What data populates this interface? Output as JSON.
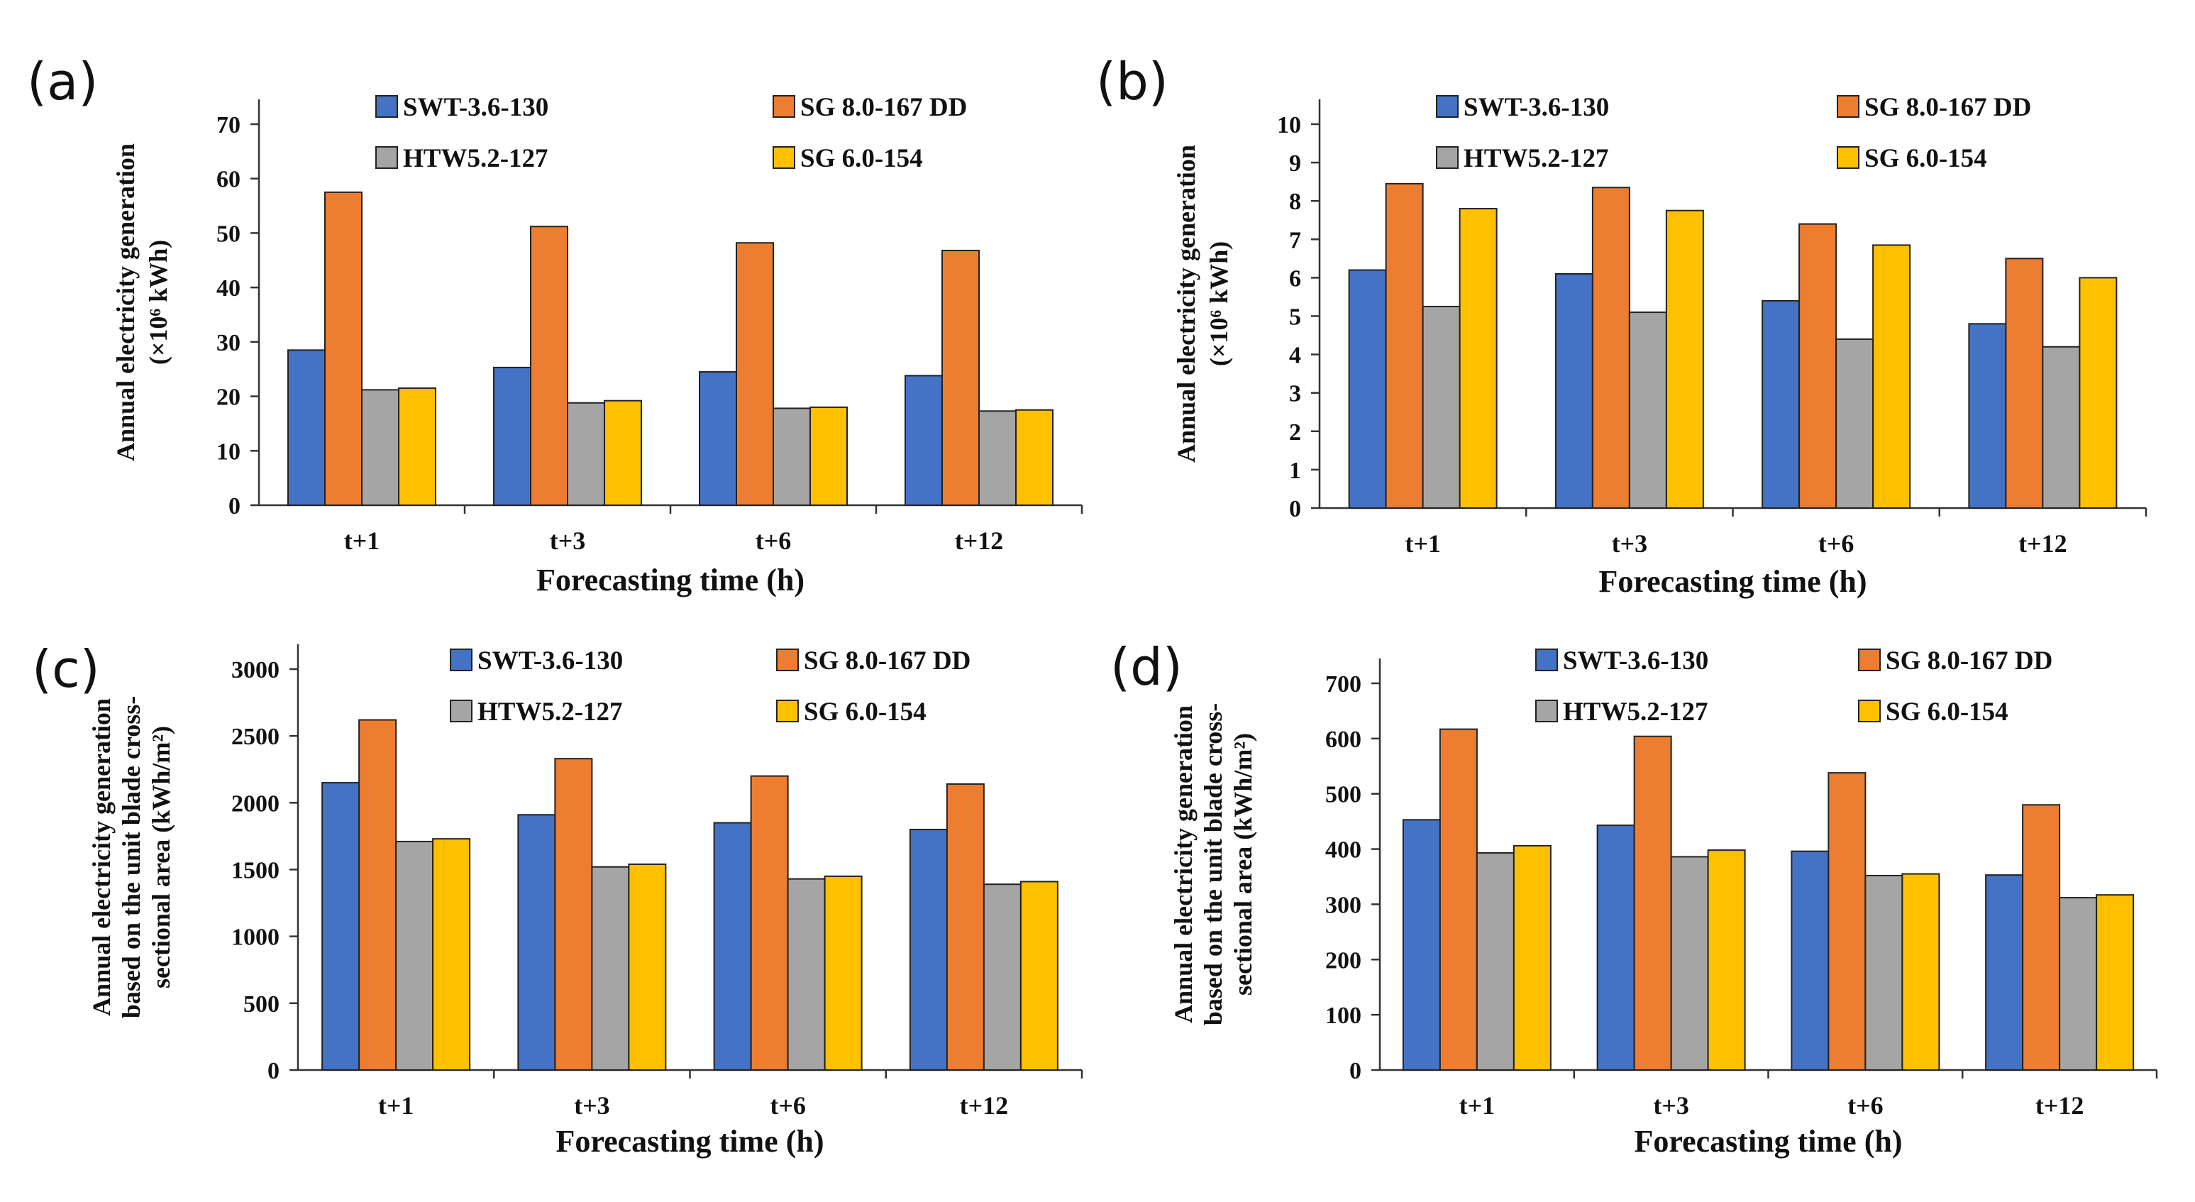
{
  "colors": {
    "SWT-3.6-130": "#4472C4",
    "SG 8.0-167 DD": "#ED7D31",
    "HTW5.2-127": "#A5A5A5",
    "SG 6.0-154": "#FFC000"
  },
  "chart_data": [
    {
      "panel": "(a)",
      "type": "bar",
      "categories": [
        "t+1",
        "t+3",
        "t+6",
        "t+12"
      ],
      "series": [
        {
          "name": "SWT-3.6-130",
          "values": [
            28.5,
            25.3,
            24.5,
            23.8
          ]
        },
        {
          "name": "SG 8.0-167 DD",
          "values": [
            57.5,
            51.2,
            48.2,
            46.8
          ]
        },
        {
          "name": "HTW5.2-127",
          "values": [
            21.2,
            18.8,
            17.8,
            17.3
          ]
        },
        {
          "name": "SG 6.0-154",
          "values": [
            21.5,
            19.2,
            18.0,
            17.5
          ]
        }
      ],
      "ylim": [
        0,
        70
      ],
      "yticks": [
        0,
        10,
        20,
        30,
        40,
        50,
        60,
        70
      ],
      "xlabel": "Forecasting time (h)",
      "ylabel_lines": [
        "Annual electricity generation",
        "(×10⁶ kWh)"
      ],
      "legend": "top, two columns"
    },
    {
      "panel": "(b)",
      "type": "bar",
      "categories": [
        "t+1",
        "t+3",
        "t+6",
        "t+12"
      ],
      "series": [
        {
          "name": "SWT-3.6-130",
          "values": [
            6.2,
            6.1,
            5.4,
            4.8
          ]
        },
        {
          "name": "SG 8.0-167 DD",
          "values": [
            8.45,
            8.35,
            7.4,
            6.5
          ]
        },
        {
          "name": "HTW5.2-127",
          "values": [
            5.25,
            5.1,
            4.4,
            4.2
          ]
        },
        {
          "name": "SG 6.0-154",
          "values": [
            7.8,
            7.75,
            6.85,
            6.0
          ]
        }
      ],
      "ylim": [
        0,
        10
      ],
      "yticks": [
        0,
        1,
        2,
        3,
        4,
        5,
        6,
        7,
        8,
        9,
        10
      ],
      "xlabel": "Forecasting time (h)",
      "ylabel_lines": [
        "Annual electricity generation",
        "(×10⁶ kWh)"
      ],
      "legend": "top, two columns"
    },
    {
      "panel": "(c)",
      "type": "bar",
      "categories": [
        "t+1",
        "t+3",
        "t+6",
        "t+12"
      ],
      "series": [
        {
          "name": "SWT-3.6-130",
          "values": [
            2150,
            1910,
            1850,
            1800
          ]
        },
        {
          "name": "SG 8.0-167 DD",
          "values": [
            2620,
            2330,
            2200,
            2140
          ]
        },
        {
          "name": "HTW5.2-127",
          "values": [
            1710,
            1520,
            1430,
            1390
          ]
        },
        {
          "name": "SG 6.0-154",
          "values": [
            1730,
            1540,
            1450,
            1410
          ]
        }
      ],
      "ylim": [
        0,
        3000
      ],
      "yticks": [
        0,
        500,
        1000,
        1500,
        2000,
        2500,
        3000
      ],
      "xlabel": "Forecasting time (h)",
      "ylabel_lines": [
        "Annual electricity generation",
        "based on the unit blade cross-",
        "sectional area (kWh/m²)"
      ],
      "legend": "top, two columns"
    },
    {
      "panel": "(d)",
      "type": "bar",
      "categories": [
        "t+1",
        "t+3",
        "t+6",
        "t+12"
      ],
      "series": [
        {
          "name": "SWT-3.6-130",
          "values": [
            453,
            443,
            396,
            353
          ]
        },
        {
          "name": "SG 8.0-167 DD",
          "values": [
            617,
            604,
            538,
            480
          ]
        },
        {
          "name": "HTW5.2-127",
          "values": [
            393,
            386,
            352,
            312
          ]
        },
        {
          "name": "SG 6.0-154",
          "values": [
            406,
            398,
            355,
            317
          ]
        }
      ],
      "ylim": [
        0,
        700
      ],
      "yticks": [
        0,
        100,
        200,
        300,
        400,
        500,
        600,
        700
      ],
      "xlabel": "Forecasting time (h)",
      "ylabel_lines": [
        "Annual electricity generation",
        "based on the unit blade cross-",
        "sectional area (kWh/m²)"
      ],
      "legend": "top, two columns"
    }
  ]
}
